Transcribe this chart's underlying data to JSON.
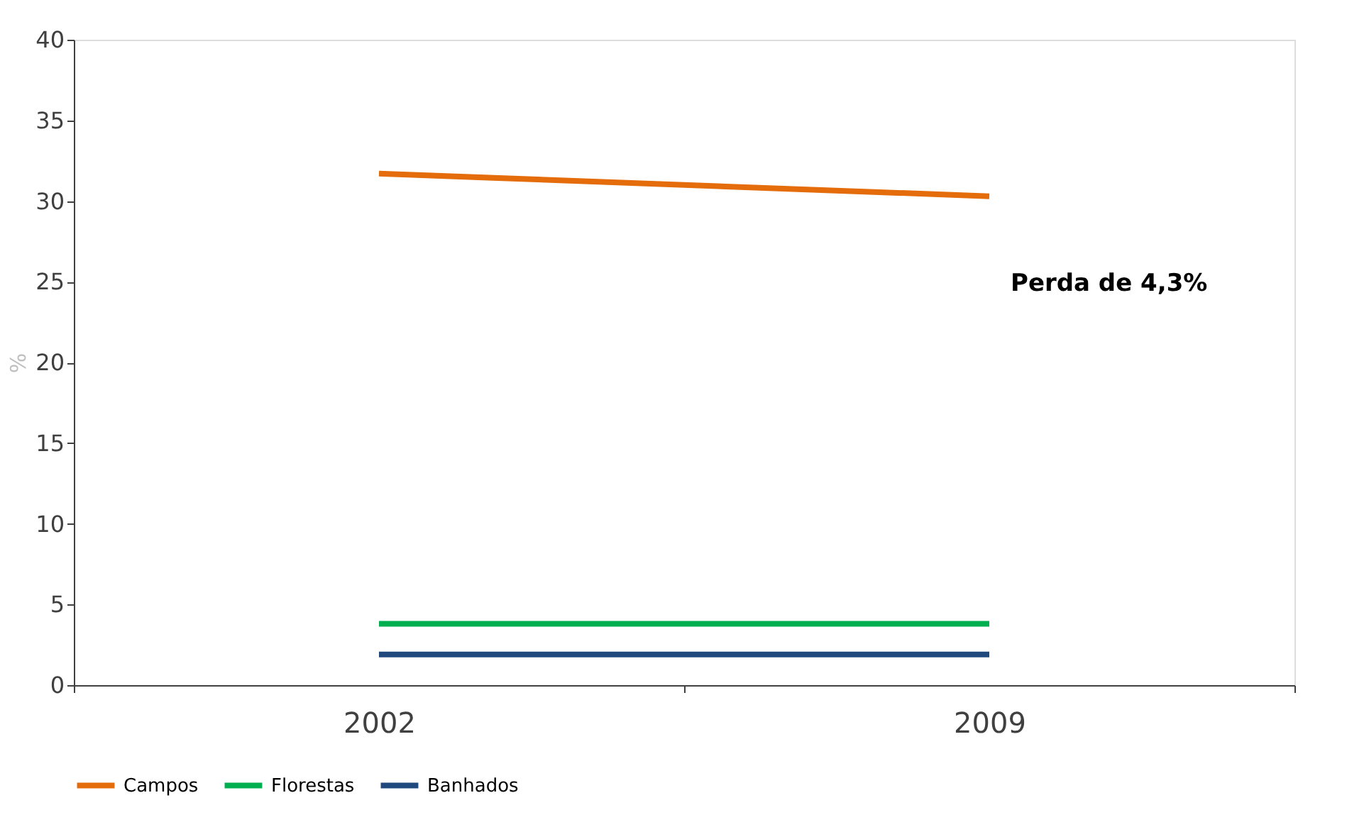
{
  "chart_data": {
    "type": "line",
    "ylabel": "%",
    "categories": [
      "2002",
      "2009"
    ],
    "series": [
      {
        "name": "Campos",
        "color": "#e46c0a",
        "values": [
          31.7,
          30.3
        ]
      },
      {
        "name": "Florestas",
        "color": "#00b050",
        "values": [
          3.8,
          3.8
        ]
      },
      {
        "name": "Banhados",
        "color": "#1f497d",
        "values": [
          1.9,
          1.9
        ]
      }
    ],
    "ylim": [
      0,
      40
    ],
    "yticks": [
      0,
      5,
      10,
      15,
      20,
      25,
      30,
      35,
      40
    ],
    "annotations": [
      "Perda de 4,3%"
    ],
    "legend": "bottom",
    "grid": false,
    "marker": "none",
    "line_style": "solid"
  }
}
